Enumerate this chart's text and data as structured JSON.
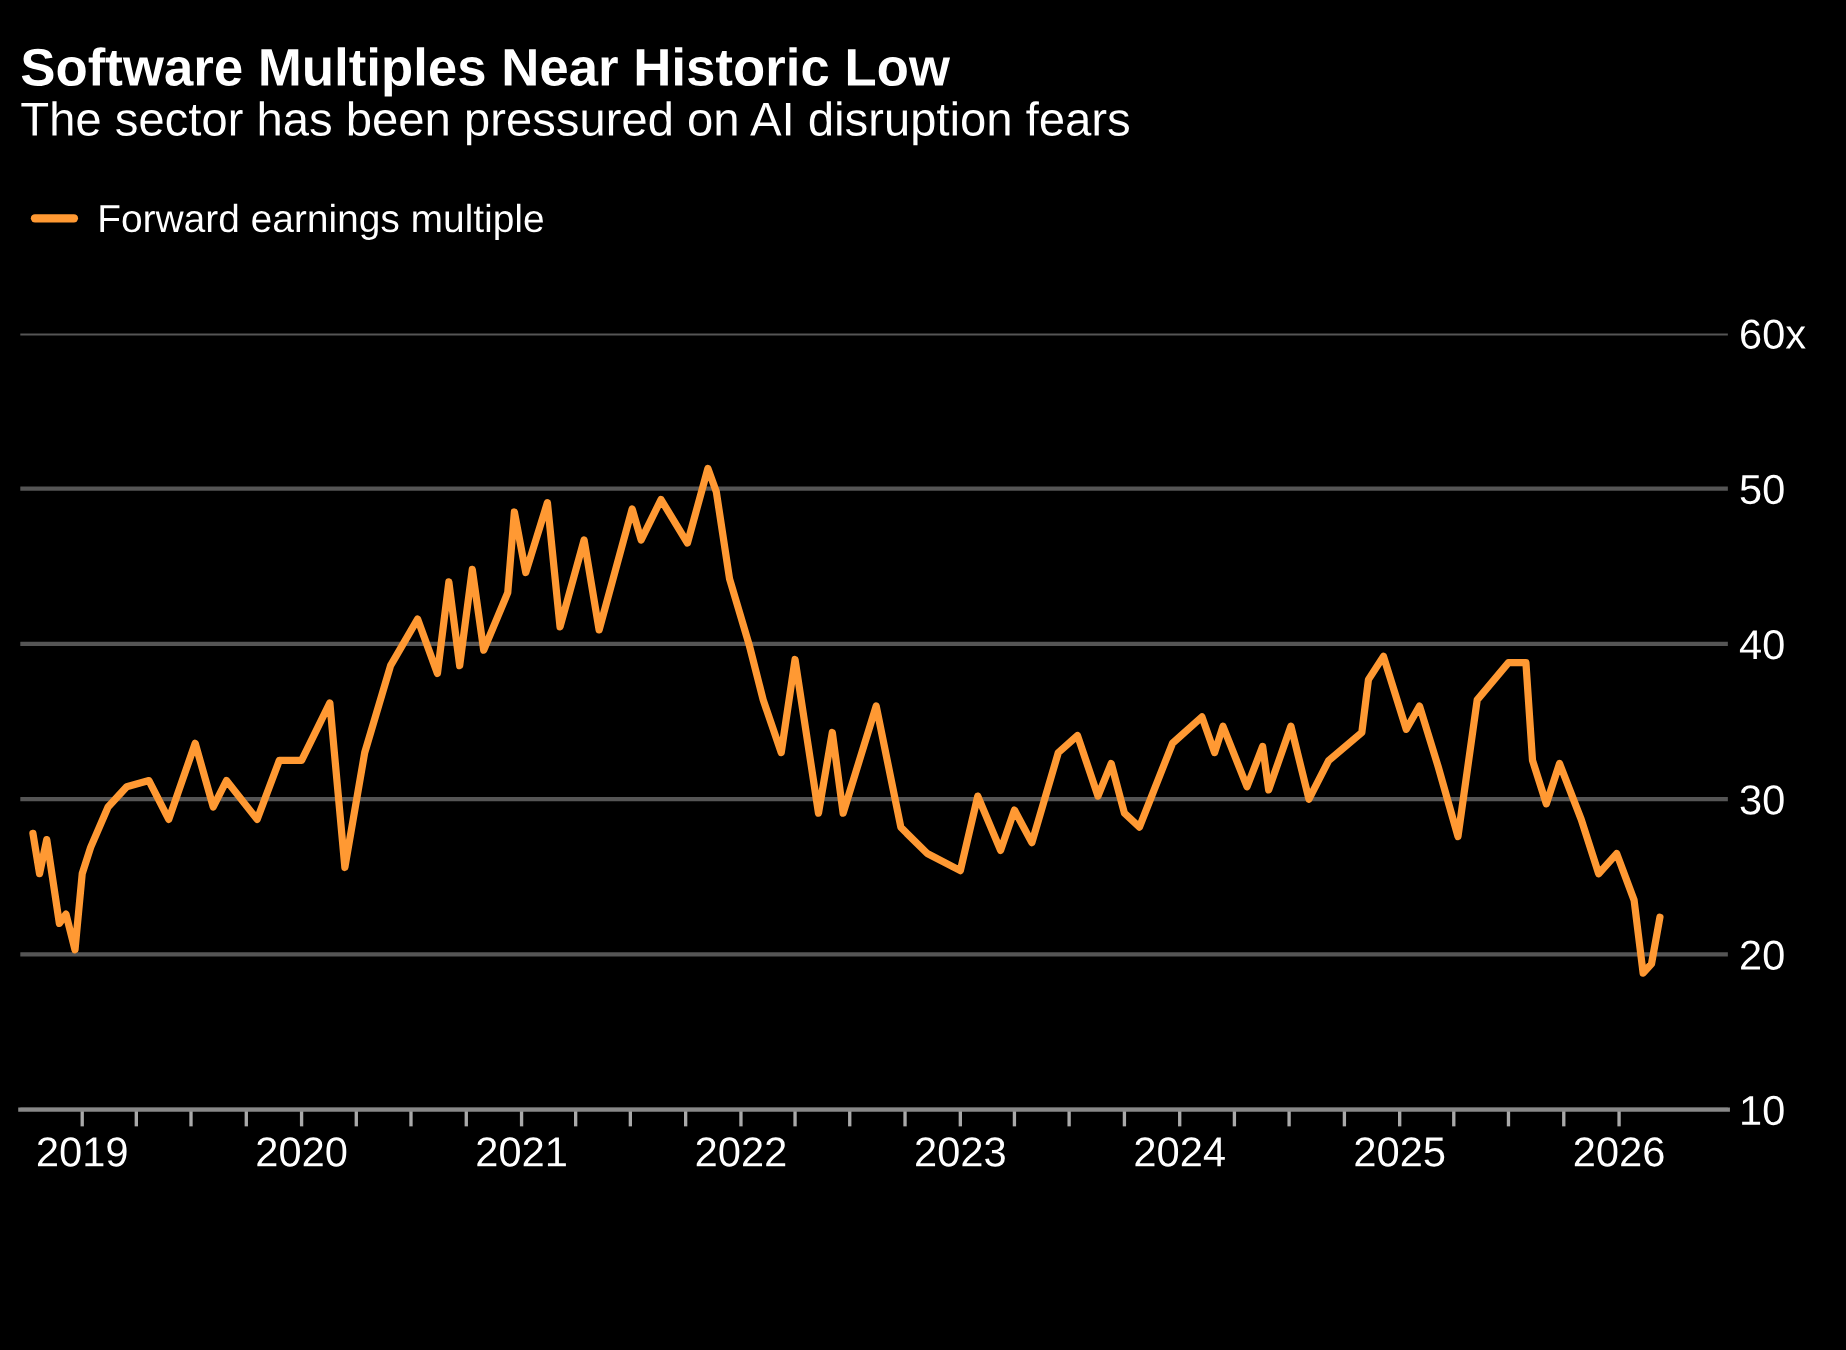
{
  "chart_data": {
    "type": "line",
    "title": "Software Multiples Near Historic Low",
    "subtitle": "The sector has been pressured on AI disruption fears",
    "x": [
      "2018-10-11",
      "2018-10-22",
      "2018-11-03",
      "2018-11-24",
      "2018-12-05",
      "2018-12-20",
      "2019-01-01",
      "2019-01-15",
      "2019-02-13",
      "2019-03-16",
      "2019-04-22",
      "2019-05-25",
      "2019-07-08",
      "2019-08-07",
      "2019-08-29",
      "2019-10-19",
      "2019-11-25",
      "2020-01-01",
      "2020-02-17",
      "2020-03-13",
      "2020-04-15",
      "2020-05-28",
      "2020-07-12",
      "2020-08-14",
      "2020-09-02",
      "2020-09-20",
      "2020-10-11",
      "2020-10-30",
      "2020-12-09",
      "2020-12-20",
      "2021-01-08",
      "2021-02-13",
      "2021-03-06",
      "2021-04-15",
      "2021-05-10",
      "2021-07-04",
      "2021-07-19",
      "2021-08-21",
      "2021-10-04",
      "2021-11-07",
      "2021-11-21",
      "2021-12-13",
      "2022-01-15",
      "2022-02-07",
      "2022-03-09",
      "2022-04-01",
      "2022-05-10",
      "2022-06-02",
      "2022-06-20",
      "2022-08-14",
      "2022-09-24",
      "2022-10-04",
      "2022-11-07",
      "2023-01-01",
      "2023-01-30",
      "2023-03-09",
      "2023-04-01",
      "2023-04-30",
      "2023-06-13",
      "2023-07-15",
      "2023-08-18",
      "2023-09-09",
      "2023-10-01",
      "2023-10-26",
      "2023-12-20",
      "2024-02-07",
      "2024-02-28",
      "2024-03-13",
      "2024-04-22",
      "2024-05-18",
      "2024-05-28",
      "2024-07-04",
      "2024-08-03",
      "2024-09-05",
      "2024-10-30",
      "2024-11-10",
      "2024-12-05",
      "2025-01-12",
      "2025-02-03",
      "2025-03-06",
      "2025-04-08",
      "2025-05-10",
      "2025-07-01",
      "2025-07-30",
      "2025-08-10",
      "2025-09-02",
      "2025-09-24",
      "2025-10-30",
      "2025-11-28",
      "2025-12-28",
      "2026-01-26",
      "2026-02-10",
      "2026-02-24",
      "2026-03-10"
    ],
    "series": [
      {
        "name": "Forward earnings multiple",
        "color": "#ff9933",
        "values": [
          27.8,
          25.2,
          27.4,
          22.0,
          22.6,
          20.3,
          25.2,
          26.9,
          29.5,
          30.8,
          31.2,
          28.7,
          33.6,
          29.5,
          31.2,
          28.7,
          32.5,
          32.5,
          36.2,
          25.6,
          33.0,
          38.6,
          41.6,
          38.1,
          44.0,
          38.6,
          44.8,
          39.6,
          43.3,
          48.5,
          44.6,
          49.1,
          41.1,
          46.7,
          40.9,
          48.7,
          46.7,
          49.3,
          46.5,
          51.3,
          49.8,
          44.2,
          39.9,
          36.4,
          33.0,
          39.0,
          29.1,
          34.3,
          29.1,
          36.0,
          28.2,
          27.8,
          26.5,
          25.4,
          30.2,
          26.7,
          29.3,
          27.2,
          33.0,
          34.1,
          30.2,
          32.3,
          29.1,
          28.2,
          33.6,
          35.3,
          33.0,
          34.7,
          30.8,
          33.4,
          30.6,
          34.7,
          30.0,
          32.5,
          34.3,
          37.7,
          39.2,
          34.5,
          36.0,
          32.1,
          27.6,
          36.4,
          38.8,
          38.8,
          32.5,
          29.7,
          32.3,
          28.7,
          25.2,
          26.5,
          23.5,
          18.8,
          19.4,
          22.4
        ]
      }
    ],
    "xlim": [
      "2018-09-20",
      "2026-07-01"
    ],
    "xticks": [
      {
        "value": "2019-01-01",
        "label": "2019"
      },
      {
        "value": "2019-04-01",
        "label": null
      },
      {
        "value": "2019-07-01",
        "label": null
      },
      {
        "value": "2019-10-01",
        "label": null
      },
      {
        "value": "2020-01-01",
        "label": "2020"
      },
      {
        "value": "2020-04-01",
        "label": null
      },
      {
        "value": "2020-07-01",
        "label": null
      },
      {
        "value": "2020-10-01",
        "label": null
      },
      {
        "value": "2021-01-01",
        "label": "2021"
      },
      {
        "value": "2021-04-01",
        "label": null
      },
      {
        "value": "2021-07-01",
        "label": null
      },
      {
        "value": "2021-10-01",
        "label": null
      },
      {
        "value": "2022-01-01",
        "label": "2022"
      },
      {
        "value": "2022-04-01",
        "label": null
      },
      {
        "value": "2022-07-01",
        "label": null
      },
      {
        "value": "2022-10-01",
        "label": null
      },
      {
        "value": "2023-01-01",
        "label": "2023"
      },
      {
        "value": "2023-04-01",
        "label": null
      },
      {
        "value": "2023-07-01",
        "label": null
      },
      {
        "value": "2023-10-01",
        "label": null
      },
      {
        "value": "2024-01-01",
        "label": "2024"
      },
      {
        "value": "2024-04-01",
        "label": null
      },
      {
        "value": "2024-07-01",
        "label": null
      },
      {
        "value": "2024-10-01",
        "label": null
      },
      {
        "value": "2025-01-01",
        "label": "2025"
      },
      {
        "value": "2025-04-01",
        "label": null
      },
      {
        "value": "2025-07-01",
        "label": null
      },
      {
        "value": "2025-10-01",
        "label": null
      },
      {
        "value": "2026-01-01",
        "label": "2026"
      }
    ],
    "ylim": [
      10,
      60
    ],
    "yticks": [
      10,
      20,
      30,
      40,
      50,
      {
        "value": 60,
        "label": "60x"
      }
    ],
    "grid": "y",
    "legend": "top left"
  }
}
